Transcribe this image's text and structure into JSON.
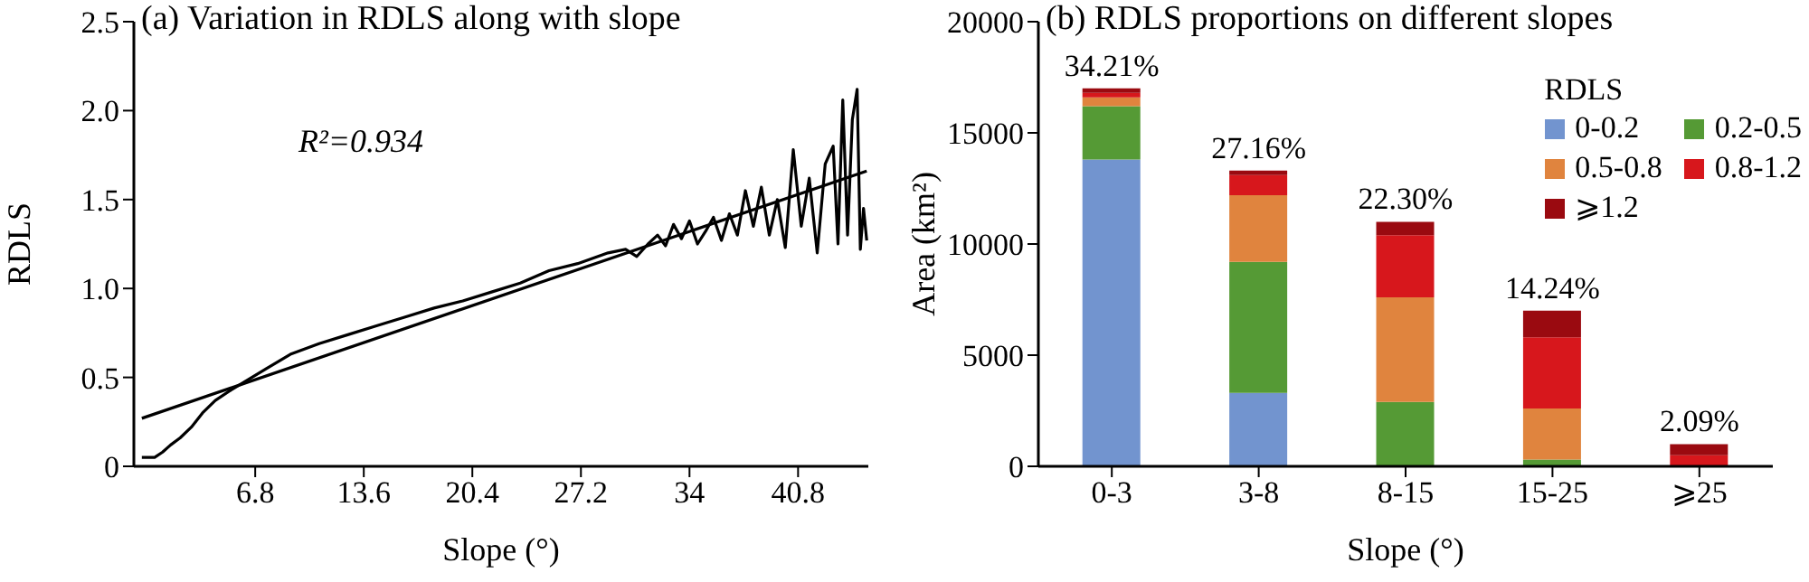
{
  "chart_data": [
    {
      "type": "line",
      "title": "(a) Variation in RDLS along with slope",
      "xlabel": "Slope (°)",
      "ylabel": "RDLS",
      "annotations": [
        "R²=0.934"
      ],
      "xlim": [
        -0.8,
        45.2
      ],
      "xticks": [
        6.8,
        13.6,
        20.4,
        27.2,
        34,
        40.8
      ],
      "ylim": [
        0,
        2.5
      ],
      "yticks": [
        0,
        0.5,
        {
          "value": 1,
          "label": "1.0"
        },
        1.5,
        {
          "value": 2,
          "label": "2.0"
        },
        2.5
      ],
      "marker": "none",
      "line_style": "solid",
      "series": [
        {
          "color": "#000000",
          "x": [
            -0.3,
            0.2,
            0.5,
            1.0,
            1.5,
            2.1,
            2.8,
            3.5,
            4.3,
            5.3,
            6.4,
            7.5,
            9.0,
            10.8,
            12.6,
            14.4,
            16.2,
            18.0,
            19.8,
            21.6,
            23.4,
            25.2,
            27.0,
            28.9,
            30.0,
            30.7,
            31.4,
            32.0,
            32.5,
            33.0,
            33.5,
            34.0,
            34.5,
            35.0,
            35.5,
            36.0,
            36.5,
            37.0,
            37.5,
            38.0,
            38.5,
            39.0,
            39.5,
            40.0,
            40.5,
            41.0,
            41.5,
            42.0,
            42.5,
            43.0,
            43.3,
            43.6,
            43.9,
            44.2,
            44.5,
            44.7,
            44.9,
            45.1
          ],
          "values": [
            0.05,
            0.05,
            0.05,
            0.08,
            0.12,
            0.16,
            0.22,
            0.3,
            0.37,
            0.43,
            0.49,
            0.55,
            0.63,
            0.69,
            0.74,
            0.79,
            0.84,
            0.89,
            0.93,
            0.98,
            1.03,
            1.1,
            1.14,
            1.2,
            1.22,
            1.18,
            1.25,
            1.3,
            1.24,
            1.36,
            1.28,
            1.38,
            1.25,
            1.32,
            1.4,
            1.27,
            1.42,
            1.3,
            1.55,
            1.35,
            1.57,
            1.3,
            1.5,
            1.23,
            1.78,
            1.35,
            1.62,
            1.2,
            1.7,
            1.8,
            1.25,
            2.06,
            1.3,
            1.95,
            2.12,
            1.22,
            1.45,
            1.27
          ]
        },
        {
          "type": "line",
          "color": "#000000",
          "x": [
            -0.3,
            45.1
          ],
          "values": [
            0.27,
            1.66
          ]
        }
      ]
    },
    {
      "type": "bar",
      "stacked": true,
      "title": "(b) RDLS proportions on different slopes",
      "xlabel": "Slope (°)",
      "ylabel": "Area (km²)",
      "legend_title": "RDLS",
      "legend": "top right",
      "categories": [
        "0-3",
        "3-8",
        "8-15",
        "15-25",
        "⩾25"
      ],
      "ylim": [
        0,
        20000
      ],
      "yticks": [
        0,
        5000,
        10000,
        15000,
        20000
      ],
      "annotations": [
        {
          "text": "34.21%",
          "x": "0-3",
          "y": 17000
        },
        {
          "text": "27.16%",
          "x": "3-8",
          "y": 13300
        },
        {
          "text": "22.30%",
          "x": "8-15",
          "y": 11000
        },
        {
          "text": "14.24%",
          "x": "15-25",
          "y": 7000
        },
        {
          "text": "2.09%",
          "x": "⩾25",
          "y": 1000
        }
      ],
      "series": [
        {
          "name": "0-0.2",
          "color": "#7294cf",
          "values": [
            13800,
            3300,
            0,
            0,
            0
          ]
        },
        {
          "name": "0.2-0.5",
          "color": "#559a35",
          "values": [
            2400,
            5900,
            2900,
            300,
            0
          ]
        },
        {
          "name": "0.5-0.8",
          "color": "#e0843e",
          "values": [
            400,
            3000,
            4700,
            2300,
            0
          ]
        },
        {
          "name": "0.8-1.2",
          "color": "#d7171c",
          "values": [
            200,
            900,
            2800,
            3200,
            500
          ]
        },
        {
          "name": "⩾1.2",
          "color": "#9a0a10",
          "values": [
            200,
            200,
            600,
            1200,
            500
          ]
        }
      ]
    }
  ]
}
